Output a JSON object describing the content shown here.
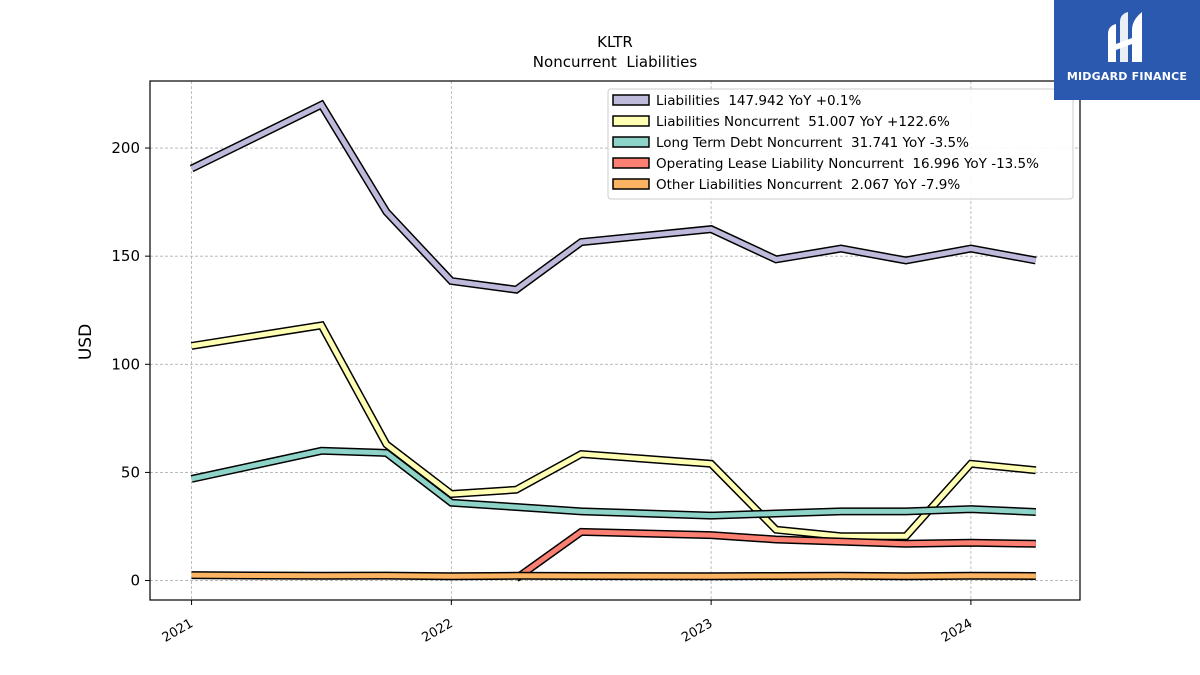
{
  "chart_data": {
    "type": "line",
    "title": "KLTR",
    "subtitle": "Noncurrent  Liabilities",
    "ylabel": "USD",
    "xlabel": "",
    "xlim": [
      2020.84,
      2024.42
    ],
    "ylim": [
      -9,
      231
    ],
    "yticks": [
      0,
      50,
      100,
      150,
      200
    ],
    "xticks": [
      "2021",
      "2022",
      "2023",
      "2024"
    ],
    "grid": true,
    "legend_position": "top-right",
    "x": [
      2021.0,
      2021.5,
      2021.75,
      2022.0,
      2022.25,
      2022.5,
      2023.0,
      2023.25,
      2023.5,
      2023.75,
      2024.0,
      2024.25
    ],
    "series": [
      {
        "name": "Liabilities",
        "legend": "Liabilities  147.942 YoY +0.1%",
        "color": "#bebadb",
        "values": [
          190.5,
          220.0,
          170.5,
          138.5,
          134.5,
          156.5,
          162.5,
          148.5,
          153.5,
          148.0,
          153.5,
          148.0
        ]
      },
      {
        "name": "Liabilities Noncurrent",
        "legend": "Liabilities Noncurrent  51.007 YoY +122.6%",
        "color": "#ffffb3",
        "values": [
          108.5,
          118.0,
          63.0,
          40.0,
          42.0,
          58.5,
          54.0,
          23.5,
          20.5,
          20.5,
          54.0,
          51.0
        ]
      },
      {
        "name": "Long Term Debt Noncurrent",
        "legend": "Long Term Debt Noncurrent  31.741 YoY -3.5%",
        "color": "#8dd3c7",
        "values": [
          47.0,
          60.0,
          59.0,
          36.0,
          34.0,
          32.0,
          30.0,
          31.0,
          32.0,
          32.0,
          33.0,
          31.7
        ]
      },
      {
        "name": "Operating Lease Liability Noncurrent",
        "legend": "Operating Lease Liability Noncurrent  16.996 YoY -13.5%",
        "color": "#fb8072",
        "values": [
          null,
          null,
          null,
          null,
          1.0,
          22.5,
          21.0,
          19.0,
          18.0,
          17.0,
          17.5,
          17.0
        ]
      },
      {
        "name": "Other Liabilities Noncurrent",
        "legend": "Other Liabilities Noncurrent  2.067 YoY -7.9%",
        "color": "#fdb462",
        "values": [
          2.5,
          2.2,
          2.3,
          2.0,
          2.2,
          2.1,
          2.0,
          2.1,
          2.2,
          2.0,
          2.2,
          2.1
        ]
      }
    ]
  },
  "logo": {
    "text": "MIDGARD FINANCE",
    "color": "#2b59b0"
  }
}
